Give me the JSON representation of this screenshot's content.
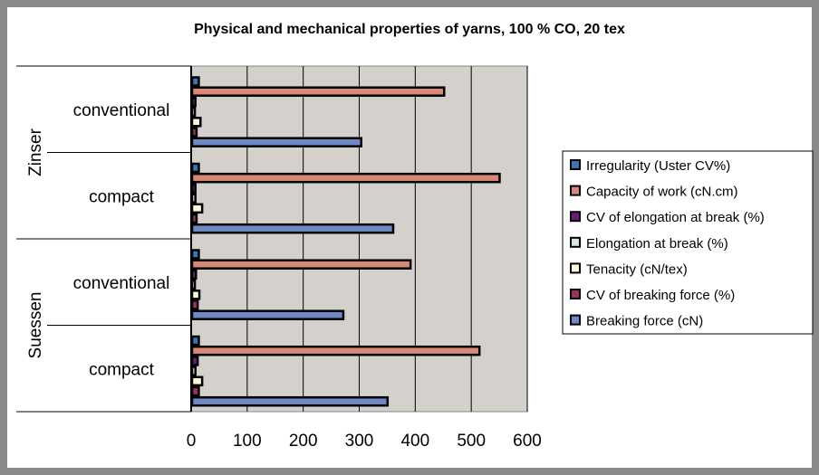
{
  "chart_data": {
    "type": "bar",
    "orientation": "horizontal",
    "title": "Physical and mechanical properties of yarns, 100 % CO, 20 tex",
    "groups": [
      {
        "label": "Zinser",
        "categories": [
          "conventional",
          "compact"
        ]
      },
      {
        "label": "Suessen",
        "categories": [
          "conventional",
          "compact"
        ]
      }
    ],
    "categories": [
      "Zinser conventional",
      "Zinser compact",
      "Suessen conventional",
      "Suessen compact"
    ],
    "series": [
      {
        "name": "Irregularity (Uster CV%)",
        "color": "#3f72b8",
        "values": [
          12,
          12,
          12,
          12
        ]
      },
      {
        "name": "Capacity of work (cN.cm)",
        "color": "#d98878",
        "values": [
          450,
          549,
          390,
          513
        ]
      },
      {
        "name": "CV of elongation at break (%)",
        "color": "#6a1a78",
        "values": [
          6,
          6,
          7,
          10
        ]
      },
      {
        "name": "Elongation at break (%)",
        "color": "#d8e4e0",
        "values": [
          5,
          6,
          5,
          6
        ]
      },
      {
        "name": "Tenacity (cN/tex)",
        "color": "#fffadc",
        "values": [
          15,
          18,
          13,
          18
        ]
      },
      {
        "name": "CV of breaking force (%)",
        "color": "#9a3060",
        "values": [
          8,
          8,
          10,
          12
        ]
      },
      {
        "name": "Breaking force (cN)",
        "color": "#6f88c6",
        "values": [
          302,
          359,
          270,
          349
        ]
      }
    ],
    "xlim": [
      0,
      600
    ],
    "xticks": [
      "0",
      "100",
      "200",
      "300",
      "400",
      "500",
      "600"
    ],
    "grid": true,
    "legend": "right",
    "plot_background": "#d4d0cc"
  }
}
